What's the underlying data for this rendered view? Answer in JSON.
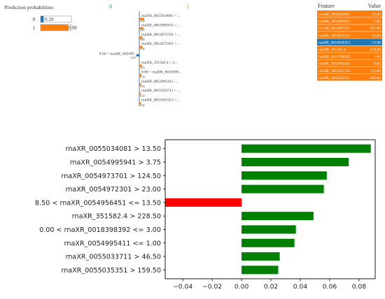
{
  "prediction_panel": {
    "title": "Prediction probabilities",
    "classes": [
      {
        "label": "0",
        "value": 0.1,
        "value_text": "0.10",
        "color": "#1f77b4"
      },
      {
        "label": "1",
        "value": 0.9,
        "value_text": "0.90",
        "color": "#ff7f0e"
      }
    ]
  },
  "explanation_panel": {
    "class_headers": [
      {
        "label": "0",
        "color": "#1f77b4"
      },
      {
        "label": "1",
        "color": "#ff7f0e"
      }
    ],
    "rows": [
      {
        "label": "rnaXR_0055034081 > ...",
        "value_text": "0.09",
        "side": "right",
        "weight": 0.088,
        "color": "#ff7f0e"
      },
      {
        "label": "rnaXR_0054995941 > ...",
        "value_text": "0.07",
        "side": "right",
        "weight": 0.073,
        "color": "#ff7f0e"
      },
      {
        "label": "rnaXR_0054973701 > ...",
        "value_text": "0.06",
        "side": "right",
        "weight": 0.058,
        "color": "#ff7f0e"
      },
      {
        "label": "rnaXR_0054972301 > ...",
        "value_text": "0.06",
        "side": "right",
        "weight": 0.056,
        "color": "#ff7f0e"
      },
      {
        "label": "8.50 < rnaXR_005495...",
        "value_text": "0.05",
        "side": "left",
        "weight": 0.052,
        "color": "#1f77b4"
      },
      {
        "label": "rnaXR_351582.4 > 2...",
        "value_text": "0.05",
        "side": "right",
        "weight": 0.049,
        "color": "#ff7f0e"
      },
      {
        "label": "0.00 < rnaXR_0018398...",
        "value_text": "0.04",
        "side": "right",
        "weight": 0.037,
        "color": "#ff7f0e"
      },
      {
        "label": "rnaXR_0054995411 ...",
        "value_text": "0.04",
        "side": "right",
        "weight": 0.036,
        "color": "#ff7f0e"
      },
      {
        "label": "rnaXR_0055033711 > ...",
        "value_text": "0.03",
        "side": "right",
        "weight": 0.026,
        "color": "#ff7f0e"
      },
      {
        "label": "rnaXR_0055035351 > ...",
        "value_text": "0.02",
        "side": "right",
        "weight": 0.025,
        "color": "#ff7f0e"
      }
    ]
  },
  "feature_table": {
    "headers": [
      "Feature",
      "Value"
    ],
    "rows": [
      {
        "feature": "rnaXR_0055034081",
        "value": "22.00",
        "color": "#ff7f0e"
      },
      {
        "feature": "rnaXR_0054995941",
        "value": "5.00",
        "color": "#ff7f0e"
      },
      {
        "feature": "rnaXR_0054973701",
        "value": "552.00",
        "color": "#ff7f0e"
      },
      {
        "feature": "rnaXR_0054972301",
        "value": "52.00",
        "color": "#ff7f0e"
      },
      {
        "feature": "rnaXR_0054956451",
        "value": "13.00",
        "color": "#1f77b4"
      },
      {
        "feature": "rnaXR_351582.4",
        "value": "278.00",
        "color": "#ff7f0e"
      },
      {
        "feature": "rnaXR_0018398392",
        "value": "1.00",
        "color": "#ff7f0e"
      },
      {
        "feature": "rnaXR_0054995411",
        "value": "0.00",
        "color": "#ff7f0e"
      },
      {
        "feature": "rnaXR_0055033711",
        "value": "175.00",
        "color": "#ff7f0e"
      },
      {
        "feature": "rnaXR_0055035351",
        "value": "442.00",
        "color": "#ff7f0e"
      }
    ]
  },
  "chart_data": {
    "type": "bar",
    "orientation": "horizontal",
    "title": "",
    "xlabel": "",
    "ylabel": "",
    "xlim": [
      -0.052,
      0.091
    ],
    "xticks": [
      -0.04,
      -0.02,
      0.0,
      0.02,
      0.04,
      0.06,
      0.08
    ],
    "xtick_labels": [
      "−0.04",
      "−0.02",
      "0.00",
      "0.02",
      "0.04",
      "0.06",
      "0.08"
    ],
    "grid": false,
    "positive_color": "#008000",
    "negative_color": "#ff0000",
    "categories": [
      "rnaXR_0055034081 > 13.50",
      "rnaXR_0054995941 > 3.75",
      "rnaXR_0054973701 > 124.50",
      "rnaXR_0054972301 > 23.00",
      "8.50 < rnaXR_0054956451 <= 13.50",
      "rnaXR_351582.4 > 228.50",
      "0.00 < rnaXR_0018398392 <= 3.00",
      "rnaXR_0054995411 <= 1.00",
      "rnaXR_0055033711 > 46.50",
      "rnaXR_0055035351 > 159.50"
    ],
    "values": [
      0.088,
      0.073,
      0.058,
      0.056,
      -0.052,
      0.049,
      0.037,
      0.036,
      0.026,
      0.025
    ]
  }
}
